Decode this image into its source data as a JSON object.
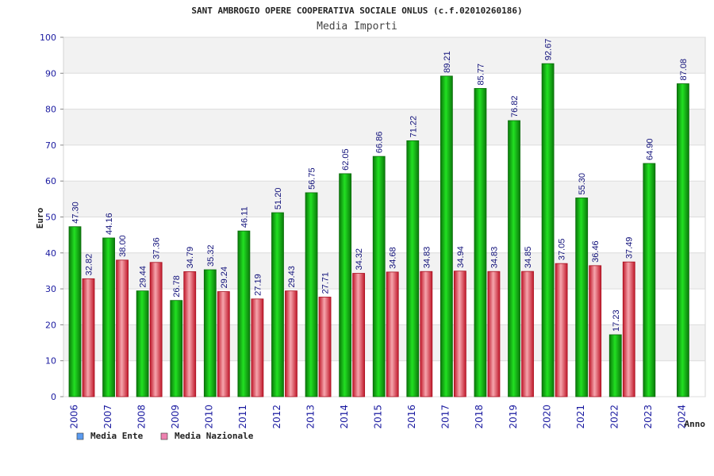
{
  "chart_data": {
    "type": "bar",
    "title": "SANT AMBROGIO OPERE COOPERATIVA SOCIALE ONLUS (c.f.02010260186)",
    "subtitle": "Media Importi",
    "ylabel": "Euro",
    "xlabel": "Anno",
    "ylim": [
      0,
      100
    ],
    "yticks": [
      "0",
      "10",
      "20",
      "30",
      "40",
      "50",
      "60",
      "70",
      "80",
      "90",
      "100"
    ],
    "categories": [
      "2006",
      "2007",
      "2008",
      "2009",
      "2010",
      "2011",
      "2012",
      "2013",
      "2014",
      "2015",
      "2016",
      "2017",
      "2018",
      "2019",
      "2020",
      "2021",
      "2022",
      "2023",
      "2024"
    ],
    "series": [
      {
        "name": "Media Ente",
        "color": "#11c011",
        "values": [
          47.3,
          44.16,
          29.44,
          26.78,
          35.32,
          46.11,
          51.2,
          56.75,
          62.05,
          66.86,
          71.22,
          89.21,
          85.77,
          76.82,
          92.67,
          55.3,
          17.23,
          64.9,
          87.08
        ],
        "labels": [
          "47.30",
          "44.16",
          "29.44",
          "26.78",
          "35.32",
          "46.11",
          "51.20",
          "56.75",
          "62.05",
          "66.86",
          "71.22",
          "89.21",
          "85.77",
          "76.82",
          "92.67",
          "55.30",
          "17.23",
          "64.90",
          "87.08"
        ]
      },
      {
        "name": "Media Nazionale",
        "color": "#e83e4f",
        "values": [
          32.82,
          38.0,
          37.36,
          34.79,
          29.24,
          27.19,
          29.43,
          27.71,
          34.32,
          34.68,
          34.83,
          34.94,
          34.83,
          34.85,
          37.05,
          36.46,
          37.49,
          null,
          null
        ],
        "labels": [
          "32.82",
          "38.00",
          "37.36",
          "34.79",
          "29.24",
          "27.19",
          "29.43",
          "27.71",
          "34.32",
          "34.68",
          "34.83",
          "34.94",
          "34.83",
          "34.85",
          "37.05",
          "36.46",
          "37.49",
          null,
          null
        ]
      }
    ],
    "legend": {
      "position": "bottom-left",
      "entries": [
        {
          "label": "Media Ente",
          "swatch": "#5b9bf0"
        },
        {
          "label": "Media Nazionale",
          "swatch": "#ee82b0"
        }
      ]
    },
    "grid": true
  }
}
